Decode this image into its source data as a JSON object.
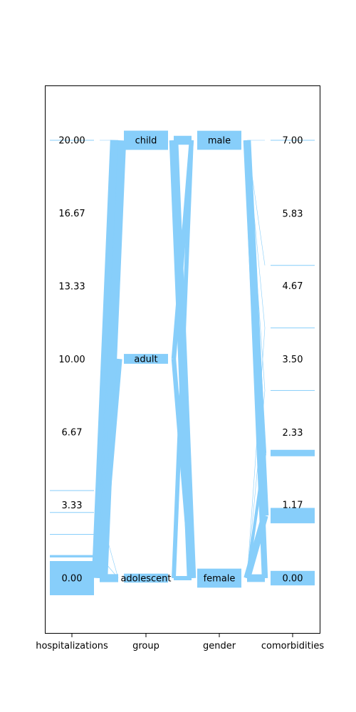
{
  "chart_data": {
    "type": "parallel-categories",
    "title": "",
    "colors": {
      "flow": "#87cefa",
      "frame": "#000000",
      "background": "#ffffff"
    },
    "grid": false,
    "dimensions": [
      {
        "name": "hospitalizations",
        "ticks": [
          "20.00",
          "16.67",
          "13.33",
          "10.00",
          "6.67",
          "3.33",
          "0.00"
        ],
        "tick_values": [
          20.0,
          16.67,
          13.33,
          10.0,
          6.67,
          3.33,
          0.0
        ],
        "range": [
          0,
          20
        ],
        "categories": [
          {
            "value": 0,
            "count": 160
          },
          {
            "value": 1,
            "count": 11
          },
          {
            "value": 2,
            "count": 2
          },
          {
            "value": 3,
            "count": 2
          },
          {
            "value": 4,
            "count": 2
          },
          {
            "value": 20,
            "count": 1
          }
        ]
      },
      {
        "name": "group",
        "categories": [
          {
            "label": "child",
            "count": 90
          },
          {
            "label": "adult",
            "count": 46
          },
          {
            "label": "adolescent",
            "count": 42
          }
        ]
      },
      {
        "name": "gender",
        "categories": [
          {
            "label": "male",
            "count": 89
          },
          {
            "label": "female",
            "count": 89
          }
        ]
      },
      {
        "name": "comorbidities",
        "ticks": [
          "7.00",
          "5.83",
          "4.67",
          "3.50",
          "2.33",
          "1.17",
          "0.00"
        ],
        "tick_values": [
          7.0,
          5.83,
          4.67,
          3.5,
          2.33,
          1.17,
          0.0
        ],
        "range": [
          0,
          7
        ],
        "categories": [
          {
            "value": 0,
            "count": 68
          },
          {
            "value": 1,
            "count": 72
          },
          {
            "value": 2,
            "count": 30
          },
          {
            "value": 3,
            "count": 3
          },
          {
            "value": 4,
            "count": 3
          },
          {
            "value": 5,
            "count": 1
          },
          {
            "value": 7,
            "count": 1
          }
        ]
      }
    ],
    "flows": [
      {
        "hospitalizations": 0,
        "group": "child",
        "count": 80
      },
      {
        "hospitalizations": 0,
        "group": "adult",
        "count": 40
      },
      {
        "hospitalizations": 0,
        "group": "adolescent",
        "count": 40
      },
      {
        "hospitalizations": 1,
        "group": "child",
        "count": 6
      },
      {
        "hospitalizations": 1,
        "group": "adult",
        "count": 4
      },
      {
        "hospitalizations": 1,
        "group": "adolescent",
        "count": 1
      },
      {
        "hospitalizations": 2,
        "group": "child",
        "count": 1
      },
      {
        "hospitalizations": 2,
        "group": "adult",
        "count": 1
      },
      {
        "hospitalizations": 3,
        "group": "child",
        "count": 1
      },
      {
        "hospitalizations": 3,
        "group": "adolescent",
        "count": 1
      },
      {
        "hospitalizations": 4,
        "group": "child",
        "count": 1
      },
      {
        "hospitalizations": 4,
        "group": "adult",
        "count": 1
      },
      {
        "hospitalizations": 20,
        "group": "child",
        "count": 1
      },
      {
        "group": "child",
        "gender": "male",
        "count": 45
      },
      {
        "group": "child",
        "gender": "female",
        "count": 45
      },
      {
        "group": "adult",
        "gender": "male",
        "count": 23
      },
      {
        "group": "adult",
        "gender": "female",
        "count": 23
      },
      {
        "group": "adolescent",
        "gender": "male",
        "count": 21
      },
      {
        "group": "adolescent",
        "gender": "female",
        "count": 21
      },
      {
        "gender": "male",
        "comorbidities": 0,
        "count": 30
      },
      {
        "gender": "male",
        "comorbidities": 1,
        "count": 38
      },
      {
        "gender": "male",
        "comorbidities": 2,
        "count": 15
      },
      {
        "gender": "male",
        "comorbidities": 3,
        "count": 2
      },
      {
        "gender": "male",
        "comorbidities": 4,
        "count": 2
      },
      {
        "gender": "male",
        "comorbidities": 5,
        "count": 1
      },
      {
        "gender": "male",
        "comorbidities": 7,
        "count": 1
      },
      {
        "gender": "female",
        "comorbidities": 0,
        "count": 38
      },
      {
        "gender": "female",
        "comorbidities": 1,
        "count": 34
      },
      {
        "gender": "female",
        "comorbidities": 2,
        "count": 15
      },
      {
        "gender": "female",
        "comorbidities": 3,
        "count": 1
      },
      {
        "gender": "female",
        "comorbidities": 4,
        "count": 1
      }
    ]
  }
}
